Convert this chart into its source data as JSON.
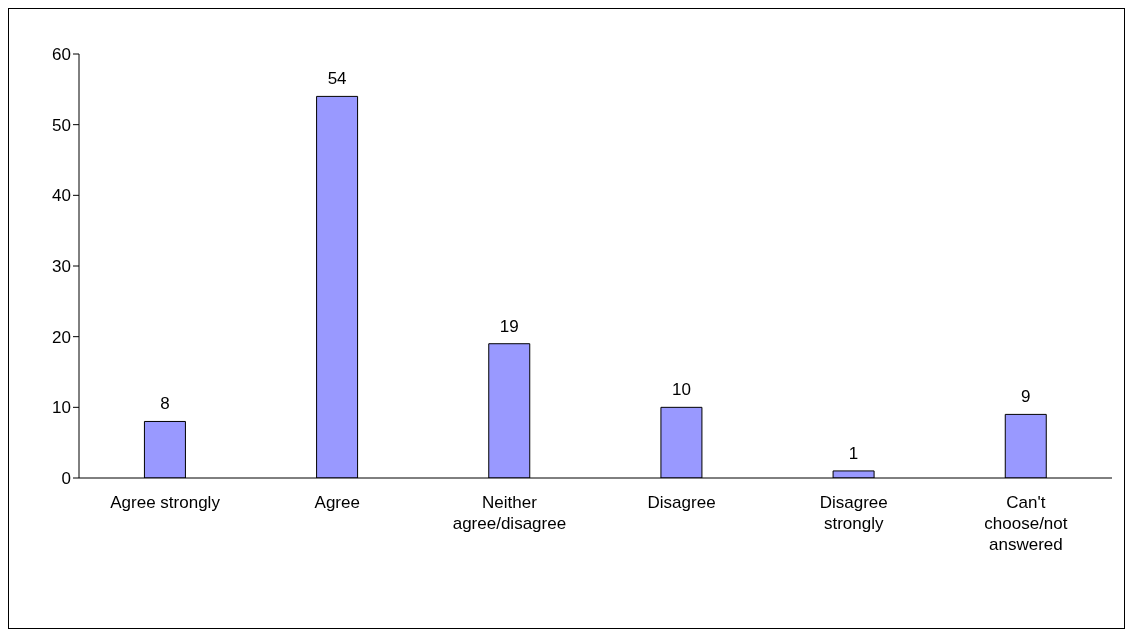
{
  "chart_data": {
    "type": "bar",
    "categories": [
      "Agree strongly",
      "Agree",
      "Neither agree/disagree",
      "Disagree",
      "Disagree strongly",
      "Can't choose/not answered"
    ],
    "values": [
      8,
      54,
      19,
      10,
      1,
      9
    ],
    "color": "#9999ff",
    "ylim": [
      0,
      60
    ],
    "yticks": [
      0,
      10,
      20,
      30,
      40,
      50,
      60
    ],
    "grid": false,
    "legend": false,
    "data_labels": true
  }
}
